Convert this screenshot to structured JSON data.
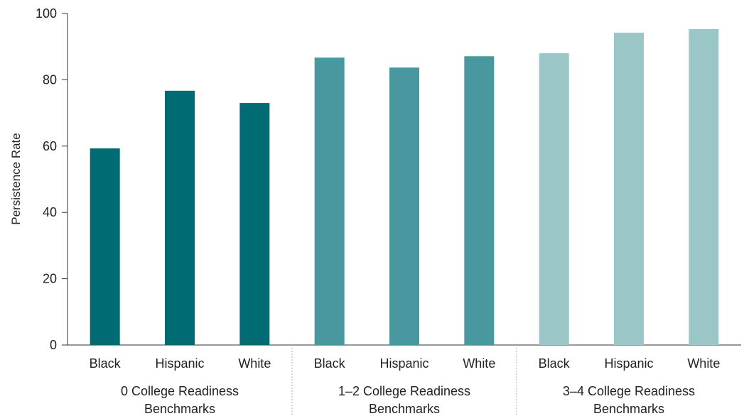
{
  "chart_data": {
    "type": "bar",
    "title": "",
    "xlabel": "",
    "ylabel": "Persistence Rate",
    "ylim": [
      0,
      100
    ],
    "yticks": [
      0,
      20,
      40,
      60,
      80,
      100
    ],
    "grid": false,
    "legend": "none",
    "groups": [
      {
        "label_lines": [
          "0 College Readiness",
          "Benchmarks"
        ],
        "color": "#006b73",
        "categories": [
          "Black",
          "Hispanic",
          "White"
        ],
        "values": [
          59.3,
          76.7,
          73.0
        ]
      },
      {
        "label_lines": [
          "1–2 College Readiness",
          "Benchmarks"
        ],
        "color": "#4a989f",
        "categories": [
          "Black",
          "Hispanic",
          "White"
        ],
        "values": [
          86.7,
          83.7,
          87.1
        ]
      },
      {
        "label_lines": [
          "3–4 College Readiness",
          "Benchmarks"
        ],
        "color": "#9ac6c8",
        "categories": [
          "Black",
          "Hispanic",
          "White"
        ],
        "values": [
          88.0,
          94.2,
          95.3
        ]
      }
    ]
  }
}
